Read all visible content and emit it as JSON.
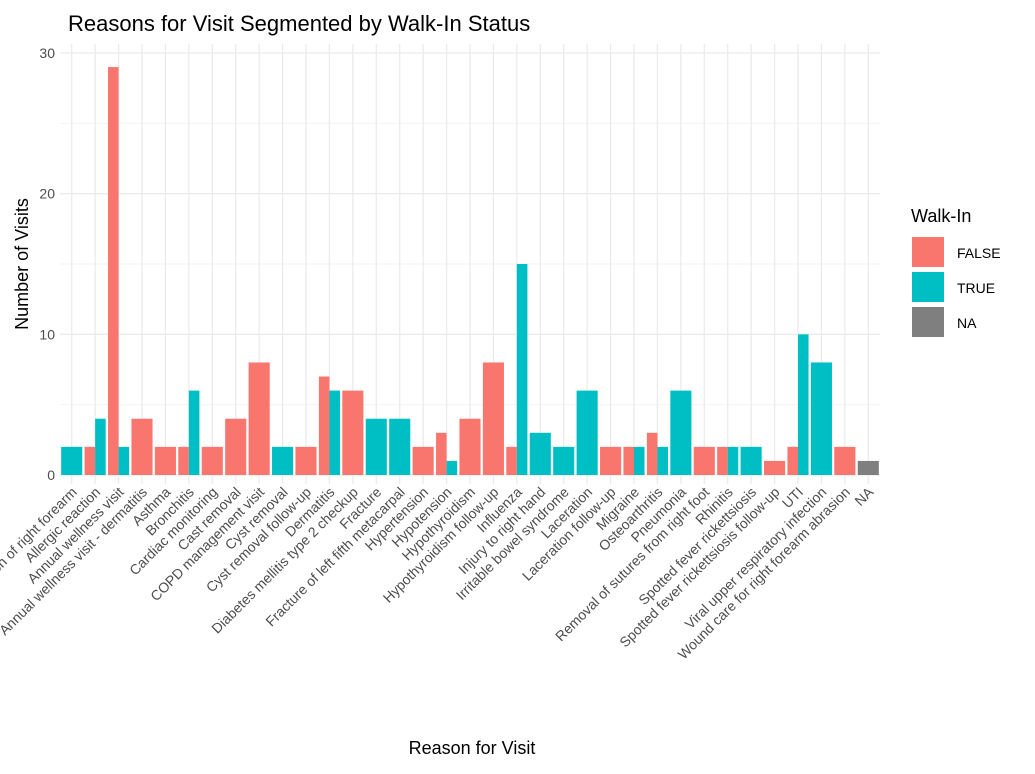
{
  "chart_data": {
    "type": "bar",
    "title": "Reasons for Visit Segmented by Walk-In Status",
    "xlabel": "Reason for Visit",
    "ylabel": "Number of Visits",
    "ylim": [
      0,
      31
    ],
    "yticks": [
      0,
      10,
      20,
      30
    ],
    "grid": true,
    "legend_position": "right",
    "legend_title": "Walk-In",
    "categories": [
      "Abrasion of right forearm",
      "Allergic reaction",
      "Annual wellness visit",
      "Annual wellness visit - dermatitis",
      "Asthma",
      "Bronchitis",
      "Cardiac monitoring",
      "Cast removal",
      "COPD management visit",
      "Cyst removal",
      "Cyst removal follow-up",
      "Dermatitis",
      "Diabetes mellitis type 2 checkup",
      "Fracture",
      "Fracture of left fifth metacarpal",
      "Hypertension",
      "Hypotension",
      "Hypothyroidism",
      "Hypothyroidism follow-up",
      "Influenza",
      "Injury to right hand",
      "Irritable bowel syndrome",
      "Laceration",
      "Laceration follow-up",
      "Migraine",
      "Osteoarthritis",
      "Pneumonia",
      "Removal of sutures from right foot",
      "Rhinitis",
      "Spotted fever rickettsiosis",
      "Spotted fever rickettsiosis follow-up",
      "UTI",
      "Viral upper respiratory infection",
      "Wound care for right forearm abrasion",
      "NA"
    ],
    "series": [
      {
        "name": "FALSE",
        "color": "#F8766D",
        "values": [
          null,
          2,
          29,
          4,
          2,
          2,
          2,
          4,
          8,
          null,
          2,
          7,
          6,
          null,
          null,
          2,
          3,
          4,
          8,
          2,
          null,
          null,
          null,
          2,
          2,
          3,
          null,
          2,
          2,
          null,
          1,
          2,
          null,
          2,
          null
        ]
      },
      {
        "name": "TRUE",
        "color": "#00BFC4",
        "values": [
          2,
          4,
          2,
          null,
          null,
          6,
          null,
          null,
          null,
          2,
          null,
          6,
          null,
          4,
          4,
          null,
          1,
          null,
          null,
          15,
          3,
          2,
          6,
          null,
          2,
          2,
          6,
          null,
          2,
          2,
          null,
          10,
          8,
          null,
          null
        ]
      },
      {
        "name": "NA",
        "color": "#7F7F7F",
        "values": [
          null,
          null,
          null,
          null,
          null,
          null,
          null,
          null,
          null,
          null,
          null,
          null,
          null,
          null,
          null,
          null,
          null,
          null,
          null,
          null,
          null,
          null,
          null,
          null,
          null,
          null,
          null,
          null,
          null,
          null,
          null,
          null,
          null,
          null,
          1
        ]
      }
    ]
  }
}
